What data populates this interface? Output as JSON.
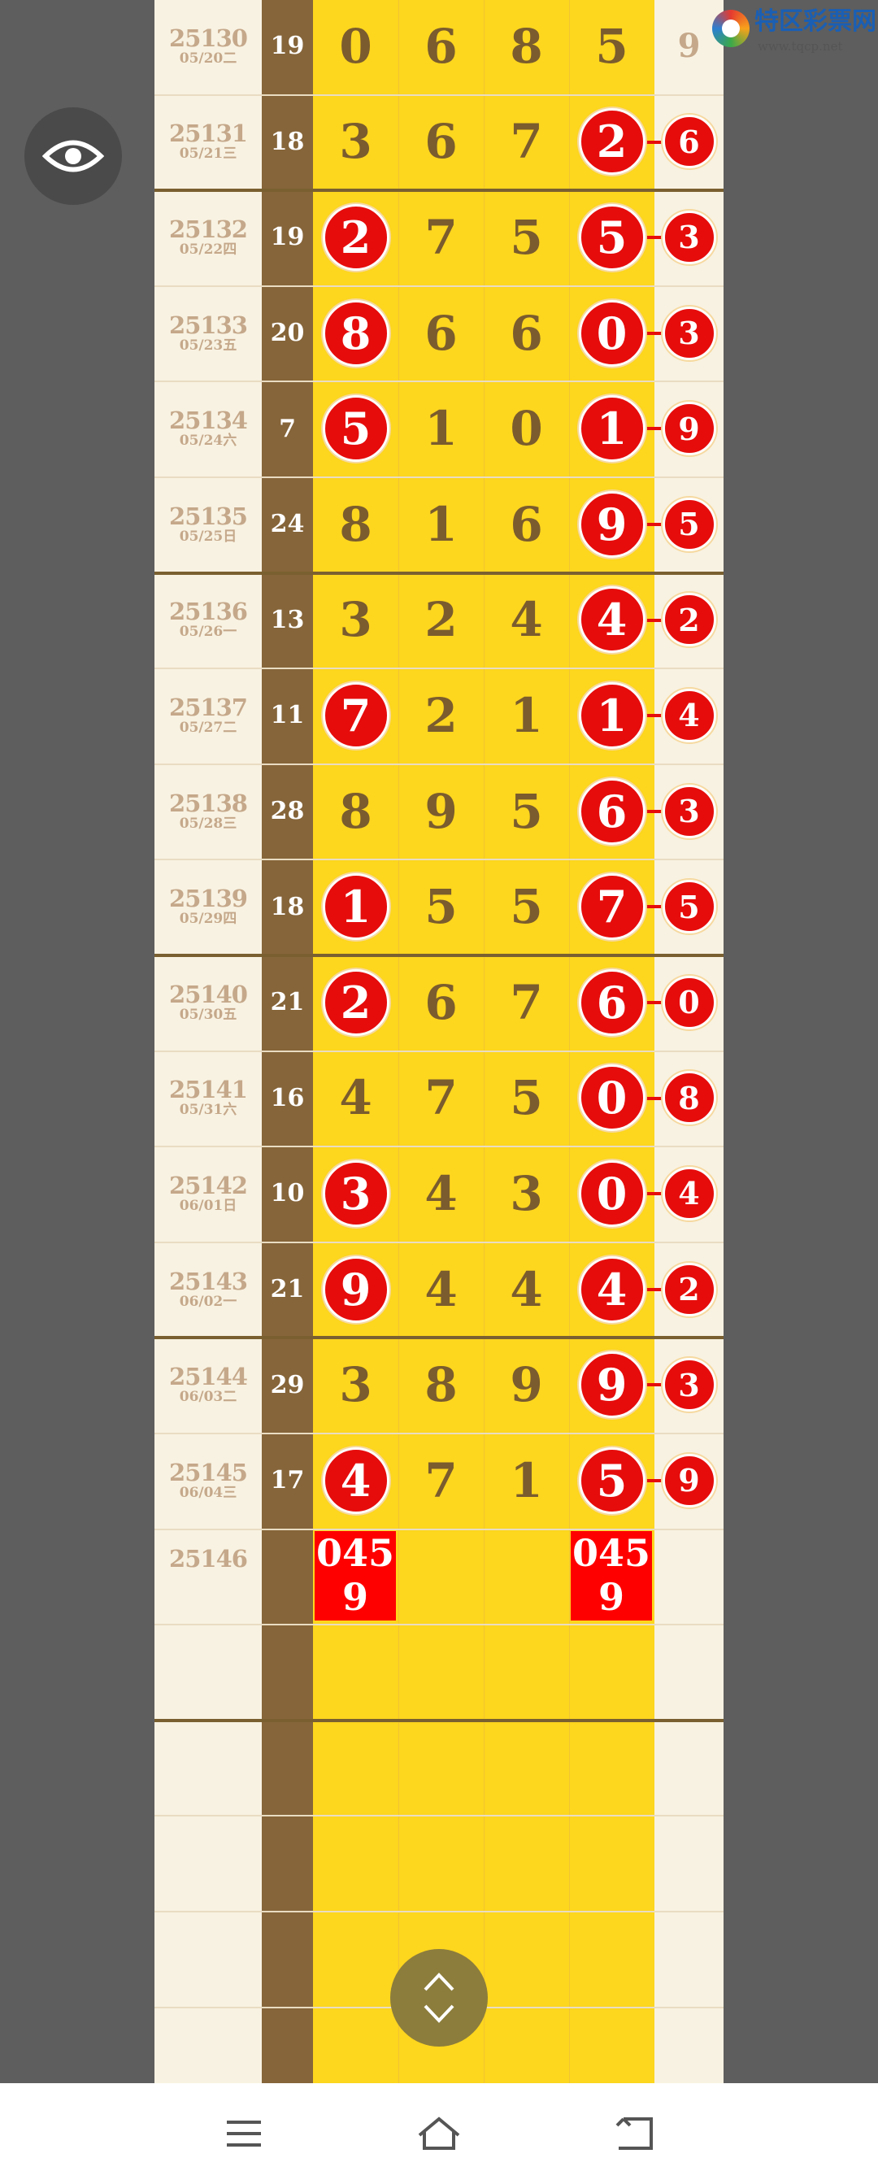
{
  "logo": {
    "name": "特区彩票网",
    "url": "www.tqcp.net"
  },
  "colors": {
    "red": "#e60c0c",
    "yellow": "#fdd61e",
    "brown": "#86653a",
    "cream": "#f8f2e2",
    "gray": "#5e5e5e"
  },
  "rows": [
    {
      "period": "25130",
      "date": "05/20二",
      "sum": "19",
      "digits": [
        "0",
        "6",
        "8",
        "5"
      ],
      "hits": [
        false,
        false,
        false,
        false
      ],
      "last": "9",
      "last_hit": false
    },
    {
      "period": "25131",
      "date": "05/21三",
      "sum": "18",
      "digits": [
        "3",
        "6",
        "7",
        "2"
      ],
      "hits": [
        false,
        false,
        false,
        true
      ],
      "last": "6",
      "last_hit": true
    },
    {
      "period": "25132",
      "date": "05/22四",
      "sum": "19",
      "digits": [
        "2",
        "7",
        "5",
        "5"
      ],
      "hits": [
        true,
        false,
        false,
        true
      ],
      "last": "3",
      "last_hit": true
    },
    {
      "period": "25133",
      "date": "05/23五",
      "sum": "20",
      "digits": [
        "8",
        "6",
        "6",
        "0"
      ],
      "hits": [
        true,
        false,
        false,
        true
      ],
      "last": "3",
      "last_hit": true
    },
    {
      "period": "25134",
      "date": "05/24六",
      "sum": "7",
      "digits": [
        "5",
        "1",
        "0",
        "1"
      ],
      "hits": [
        true,
        false,
        false,
        true
      ],
      "last": "9",
      "last_hit": true
    },
    {
      "period": "25135",
      "date": "05/25日",
      "sum": "24",
      "digits": [
        "8",
        "1",
        "6",
        "9"
      ],
      "hits": [
        false,
        false,
        false,
        true
      ],
      "last": "5",
      "last_hit": true
    },
    {
      "period": "25136",
      "date": "05/26一",
      "sum": "13",
      "digits": [
        "3",
        "2",
        "4",
        "4"
      ],
      "hits": [
        false,
        false,
        false,
        true
      ],
      "last": "2",
      "last_hit": true
    },
    {
      "period": "25137",
      "date": "05/27二",
      "sum": "11",
      "digits": [
        "7",
        "2",
        "1",
        "1"
      ],
      "hits": [
        true,
        false,
        false,
        true
      ],
      "last": "4",
      "last_hit": true
    },
    {
      "period": "25138",
      "date": "05/28三",
      "sum": "28",
      "digits": [
        "8",
        "9",
        "5",
        "6"
      ],
      "hits": [
        false,
        false,
        false,
        true
      ],
      "last": "3",
      "last_hit": true
    },
    {
      "period": "25139",
      "date": "05/29四",
      "sum": "18",
      "digits": [
        "1",
        "5",
        "5",
        "7"
      ],
      "hits": [
        true,
        false,
        false,
        true
      ],
      "last": "5",
      "last_hit": true
    },
    {
      "period": "25140",
      "date": "05/30五",
      "sum": "21",
      "digits": [
        "2",
        "6",
        "7",
        "6"
      ],
      "hits": [
        true,
        false,
        false,
        true
      ],
      "last": "0",
      "last_hit": true
    },
    {
      "period": "25141",
      "date": "05/31六",
      "sum": "16",
      "digits": [
        "4",
        "7",
        "5",
        "0"
      ],
      "hits": [
        false,
        false,
        false,
        true
      ],
      "last": "8",
      "last_hit": true
    },
    {
      "period": "25142",
      "date": "06/01日",
      "sum": "10",
      "digits": [
        "3",
        "4",
        "3",
        "0"
      ],
      "hits": [
        true,
        false,
        false,
        true
      ],
      "last": "4",
      "last_hit": true
    },
    {
      "period": "25143",
      "date": "06/02一",
      "sum": "21",
      "digits": [
        "9",
        "4",
        "4",
        "4"
      ],
      "hits": [
        true,
        false,
        false,
        true
      ],
      "last": "2",
      "last_hit": true
    },
    {
      "period": "25144",
      "date": "06/03二",
      "sum": "29",
      "digits": [
        "3",
        "8",
        "9",
        "9"
      ],
      "hits": [
        false,
        false,
        false,
        true
      ],
      "last": "3",
      "last_hit": true
    },
    {
      "period": "25145",
      "date": "06/04三",
      "sum": "17",
      "digits": [
        "4",
        "7",
        "1",
        "5"
      ],
      "hits": [
        true,
        false,
        false,
        true
      ],
      "last": "9",
      "last_hit": true
    },
    {
      "period": "25146",
      "date": "",
      "sum": "",
      "digits": [
        "",
        "",
        "",
        ""
      ],
      "hits": [
        false,
        false,
        false,
        false
      ],
      "last": "",
      "last_hit": false,
      "predictions": [
        "0459",
        "",
        "",
        "0459"
      ]
    }
  ],
  "icons": {
    "eye": "eye-icon",
    "scroll": "scroll-up-down-icon",
    "nav": [
      "menu-icon",
      "home-icon",
      "back-icon"
    ]
  }
}
